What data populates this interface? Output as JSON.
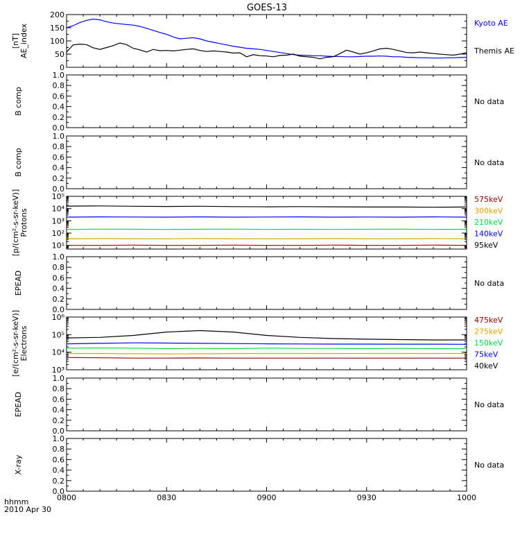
{
  "title": "GOES-13",
  "time_axis": {
    "label": "hhmm",
    "date": "2010 Apr 30",
    "range": [
      0,
      120
    ],
    "ticks": [
      {
        "t": 0,
        "label": "0800"
      },
      {
        "t": 30,
        "label": "0830"
      },
      {
        "t": 60,
        "label": "0900"
      },
      {
        "t": 90,
        "label": "0930"
      },
      {
        "t": 120,
        "label": "1000"
      }
    ]
  },
  "colors": {
    "axis": "#000000",
    "kyoto": "#0000ff",
    "themis": "#000000",
    "red": "#a00000",
    "orange": "#e8a000",
    "green": "#00dd40",
    "blue": "#0000ff",
    "black": "#000000"
  },
  "chart_data": [
    {
      "type": "line",
      "ylabel": [
        "AE_index",
        "[nT]"
      ],
      "scale": "linear",
      "ylim": [
        0,
        200
      ],
      "yticks": [
        {
          "v": 0,
          "label": "0"
        },
        {
          "v": 50,
          "label": "50"
        },
        {
          "v": 100,
          "label": "100"
        },
        {
          "v": 150,
          "label": "150"
        },
        {
          "v": 200,
          "label": "200"
        }
      ],
      "series": [
        {
          "name": "Kyoto AE",
          "color": "kyoto",
          "x": [
            0,
            2,
            4,
            6,
            8,
            10,
            12,
            14,
            16,
            18,
            20,
            22,
            24,
            26,
            28,
            30,
            32,
            34,
            36,
            38,
            40,
            42,
            44,
            46,
            48,
            50,
            52,
            54,
            56,
            58,
            60,
            62,
            64,
            66,
            68,
            70,
            72,
            74,
            76,
            78,
            80,
            82,
            84,
            86,
            88,
            90,
            92,
            94,
            96,
            98,
            100,
            102,
            104,
            106,
            108,
            110,
            112,
            114,
            116,
            118,
            120
          ],
          "values": [
            150,
            158,
            170,
            178,
            183,
            180,
            173,
            168,
            165,
            162,
            160,
            155,
            148,
            140,
            132,
            125,
            115,
            108,
            110,
            112,
            108,
            100,
            95,
            90,
            85,
            80,
            76,
            72,
            70,
            68,
            64,
            60,
            56,
            52,
            48,
            46,
            45,
            44,
            44,
            42,
            41,
            41,
            40,
            40,
            41,
            42,
            42,
            43,
            42,
            40,
            40,
            38,
            37,
            36,
            36,
            35,
            35,
            36,
            36,
            37,
            38
          ]
        },
        {
          "name": "Themis AE",
          "color": "themis",
          "x": [
            0,
            2,
            4,
            6,
            8,
            10,
            12,
            14,
            16,
            18,
            20,
            22,
            24,
            26,
            28,
            30,
            32,
            34,
            36,
            38,
            40,
            42,
            44,
            46,
            48,
            50,
            52,
            54,
            56,
            58,
            60,
            62,
            64,
            66,
            68,
            70,
            72,
            74,
            76,
            78,
            80,
            82,
            84,
            86,
            88,
            90,
            92,
            94,
            96,
            98,
            100,
            102,
            104,
            106,
            108,
            110,
            112,
            114,
            116,
            118,
            120
          ],
          "values": [
            58,
            85,
            88,
            86,
            74,
            68,
            75,
            82,
            92,
            86,
            72,
            66,
            58,
            68,
            63,
            64,
            62,
            65,
            68,
            70,
            64,
            60,
            62,
            60,
            58,
            54,
            55,
            40,
            48,
            44,
            43,
            40,
            45,
            46,
            50,
            42,
            40,
            38,
            32,
            38,
            40,
            52,
            65,
            58,
            50,
            55,
            62,
            70,
            72,
            68,
            62,
            56,
            55,
            58,
            55,
            52,
            50,
            48,
            46,
            50,
            55
          ]
        }
      ]
    },
    {
      "type": "line",
      "ylabel": [
        "B comp"
      ],
      "scale": "linear",
      "ylim": [
        0,
        1
      ],
      "yticks": [
        {
          "v": 0,
          "label": "0.0"
        },
        {
          "v": 0.2,
          "label": "0.2"
        },
        {
          "v": 0.4,
          "label": "0.4"
        },
        {
          "v": 0.6,
          "label": "0.6"
        },
        {
          "v": 0.8,
          "label": "0.8"
        },
        {
          "v": 1.0,
          "label": "1.0"
        }
      ],
      "no_data": "No data",
      "series": []
    },
    {
      "type": "line",
      "ylabel": [
        "B comp"
      ],
      "scale": "linear",
      "ylim": [
        0,
        1
      ],
      "yticks": [
        {
          "v": 0,
          "label": "0.0"
        },
        {
          "v": 0.2,
          "label": "0.2"
        },
        {
          "v": 0.4,
          "label": "0.4"
        },
        {
          "v": 0.6,
          "label": "0.6"
        },
        {
          "v": 0.8,
          "label": "0.8"
        },
        {
          "v": 1.0,
          "label": "1.0"
        }
      ],
      "no_data": "No data",
      "series": []
    },
    {
      "type": "line",
      "ylabel": [
        "Protons",
        "[p/(cm²-s-sr-keV)]"
      ],
      "scale": "log",
      "ylim": [
        5,
        100000
      ],
      "yticks": [
        {
          "v": 10,
          "label": "10¹"
        },
        {
          "v": 100,
          "label": "10²"
        },
        {
          "v": 1000,
          "label": "10³"
        },
        {
          "v": 10000,
          "label": "10⁴"
        },
        {
          "v": 100000,
          "label": "10⁵"
        }
      ],
      "series": [
        {
          "name": "575keV",
          "color": "red",
          "x": [
            0,
            10,
            20,
            30,
            40,
            50,
            60,
            70,
            80,
            90,
            100,
            110,
            120
          ],
          "values": [
            10,
            10,
            10.5,
            10,
            10,
            10.5,
            10,
            10,
            10.5,
            10,
            10,
            10.5,
            10
          ]
        },
        {
          "name": "300keV",
          "color": "orange",
          "x": [
            0,
            10,
            20,
            30,
            40,
            50,
            60,
            70,
            80,
            90,
            100,
            110,
            120
          ],
          "values": [
            35,
            36,
            35,
            35,
            36,
            35,
            35,
            35,
            36,
            35,
            35,
            36,
            35
          ]
        },
        {
          "name": "210keV",
          "color": "green",
          "x": [
            0,
            10,
            20,
            30,
            40,
            50,
            60,
            70,
            80,
            90,
            100,
            110,
            120
          ],
          "values": [
            200,
            210,
            205,
            200,
            205,
            210,
            200,
            205,
            200,
            205,
            210,
            200,
            205
          ]
        },
        {
          "name": "140keV",
          "color": "blue",
          "x": [
            0,
            10,
            20,
            30,
            40,
            50,
            60,
            70,
            80,
            90,
            100,
            110,
            120
          ],
          "values": [
            2000,
            2100,
            2050,
            2000,
            2100,
            2000,
            2050,
            2100,
            2000,
            2050,
            2000,
            2100,
            2000
          ]
        },
        {
          "name": "95keV",
          "color": "black",
          "x": [
            0,
            10,
            20,
            30,
            40,
            50,
            60,
            70,
            80,
            90,
            100,
            110,
            120
          ],
          "values": [
            16000,
            16500,
            15500,
            15000,
            15500,
            14500,
            14000,
            14500,
            14000,
            13500,
            13500,
            13000,
            13500
          ]
        }
      ]
    },
    {
      "type": "line",
      "ylabel": [
        "EPEAD"
      ],
      "scale": "linear",
      "ylim": [
        0,
        1
      ],
      "yticks": [
        {
          "v": 0,
          "label": "0.0"
        },
        {
          "v": 0.2,
          "label": "0.2"
        },
        {
          "v": 0.4,
          "label": "0.4"
        },
        {
          "v": 0.6,
          "label": "0.6"
        },
        {
          "v": 0.8,
          "label": "0.8"
        },
        {
          "v": 1.0,
          "label": "1.0"
        }
      ],
      "no_data": "No data",
      "series": []
    },
    {
      "type": "line",
      "ylabel": [
        "Electrons",
        "[e/(cm²-s-sr-keV)]"
      ],
      "scale": "log",
      "ylim": [
        1000,
        1000000
      ],
      "yticks": [
        {
          "v": 1000,
          "label": "10³"
        },
        {
          "v": 10000,
          "label": "10⁴"
        },
        {
          "v": 100000,
          "label": "10⁵"
        },
        {
          "v": 1000000,
          "label": "10⁶"
        }
      ],
      "series": [
        {
          "name": "475keV",
          "color": "red",
          "x": [
            0,
            10,
            20,
            30,
            40,
            50,
            60,
            70,
            80,
            90,
            100,
            110,
            120
          ],
          "values": [
            5000,
            4800,
            4600,
            4600,
            4700,
            4600,
            4600,
            4600,
            4600,
            4600,
            4600,
            4600,
            4600
          ]
        },
        {
          "name": "275keV",
          "color": "orange",
          "x": [
            0,
            10,
            20,
            30,
            40,
            50,
            60,
            70,
            80,
            90,
            100,
            110,
            120
          ],
          "values": [
            8500,
            8500,
            8200,
            8000,
            8200,
            8400,
            8500,
            8500,
            8400,
            8500,
            8500,
            8400,
            8500
          ]
        },
        {
          "name": "150keV",
          "color": "green",
          "x": [
            0,
            10,
            20,
            30,
            40,
            50,
            60,
            70,
            80,
            90,
            100,
            110,
            120
          ],
          "values": [
            17000,
            17500,
            17000,
            16000,
            16500,
            16000,
            17000,
            16500,
            16500,
            16000,
            16500,
            16000,
            16000
          ]
        },
        {
          "name": "75keV",
          "color": "blue",
          "x": [
            0,
            10,
            20,
            30,
            40,
            50,
            60,
            70,
            80,
            90,
            100,
            110,
            120
          ],
          "values": [
            30000,
            32000,
            34000,
            33000,
            32000,
            31000,
            30000,
            29500,
            29000,
            29000,
            28500,
            28500,
            28000
          ]
        },
        {
          "name": "40keV",
          "color": "black",
          "x": [
            0,
            10,
            20,
            30,
            40,
            50,
            60,
            70,
            80,
            90,
            100,
            110,
            120
          ],
          "values": [
            65000,
            70000,
            90000,
            140000,
            170000,
            140000,
            90000,
            70000,
            60000,
            55000,
            52000,
            50000,
            50000
          ]
        }
      ]
    },
    {
      "type": "line",
      "ylabel": [
        "EPEAD"
      ],
      "scale": "linear",
      "ylim": [
        0,
        1
      ],
      "yticks": [
        {
          "v": 0,
          "label": "0.0"
        },
        {
          "v": 0.2,
          "label": "0.2"
        },
        {
          "v": 0.4,
          "label": "0.4"
        },
        {
          "v": 0.6,
          "label": "0.6"
        },
        {
          "v": 0.8,
          "label": "0.8"
        },
        {
          "v": 1.0,
          "label": "1.0"
        }
      ],
      "no_data": "No data",
      "series": []
    },
    {
      "type": "line",
      "ylabel": [
        "X-ray"
      ],
      "scale": "linear",
      "ylim": [
        0,
        1
      ],
      "yticks": [
        {
          "v": 0,
          "label": "0.0"
        },
        {
          "v": 0.2,
          "label": "0.2"
        },
        {
          "v": 0.4,
          "label": "0.4"
        },
        {
          "v": 0.6,
          "label": "0.6"
        },
        {
          "v": 0.8,
          "label": "0.8"
        },
        {
          "v": 1.0,
          "label": "1.0"
        }
      ],
      "no_data": "No data",
      "series": []
    }
  ]
}
